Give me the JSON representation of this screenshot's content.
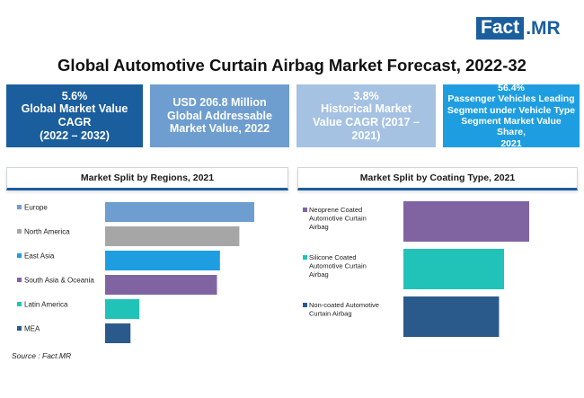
{
  "logo": {
    "part1": "Fact",
    "part2": ".MR"
  },
  "title": "Global Automotive Curtain Airbag Market Forecast, 2022-32",
  "stats": [
    {
      "line1": "5.6%",
      "line2": "Global Market Value",
      "line3": "CAGR",
      "line4": "(2022 – 2032)"
    },
    {
      "line1": "USD 206.8 Million",
      "line2": "Global Addressable",
      "line3": "Market Value, 2022"
    },
    {
      "line1": "3.8%",
      "line2": "Historical Market",
      "line3": "Value CAGR (2017 –",
      "line4": "2021)"
    },
    {
      "line1": "56.4%",
      "line2": "Passenger Vehicles Leading",
      "line3": "Segment under Vehicle Type",
      "line4": "Segment Market Value Share,",
      "line5": "2021"
    }
  ],
  "source": "Source : Fact.MR",
  "colors": {
    "navy": "#1b5e9e",
    "gray": "#a6a6a6",
    "sky": "#1e9ee0",
    "purple": "#8064a2",
    "teal": "#21c3b8",
    "dark_navy": "#2a5a8c"
  },
  "chart_data": [
    {
      "type": "bar",
      "orientation": "horizontal",
      "title": "Market Split by Regions, 2021",
      "categories": [
        "Europe",
        "North America",
        "East Asia",
        "South Asia & Oceania",
        "Latin America",
        "MEA"
      ],
      "values": [
        100,
        90,
        77,
        75,
        23,
        17
      ],
      "colors": [
        "#6e9dd0",
        "#a6a6a6",
        "#1e9ee0",
        "#8064a2",
        "#21c3b8",
        "#2a5a8c"
      ],
      "legend": "left"
    },
    {
      "type": "bar",
      "orientation": "horizontal",
      "title": "Market Split by Coating Type, 2021",
      "categories": [
        [
          "Neoprene Coated",
          "Automotive Curtain",
          "Airbag"
        ],
        [
          "Silicone Coated",
          "Automotive Curtain",
          "Airbag"
        ],
        [
          "Non-coated Automotive",
          "Curtain Airbag"
        ]
      ],
      "values": [
        100,
        80,
        76
      ],
      "colors": [
        "#8064a2",
        "#21c3b8",
        "#2a5a8c"
      ],
      "legend": "left"
    }
  ]
}
